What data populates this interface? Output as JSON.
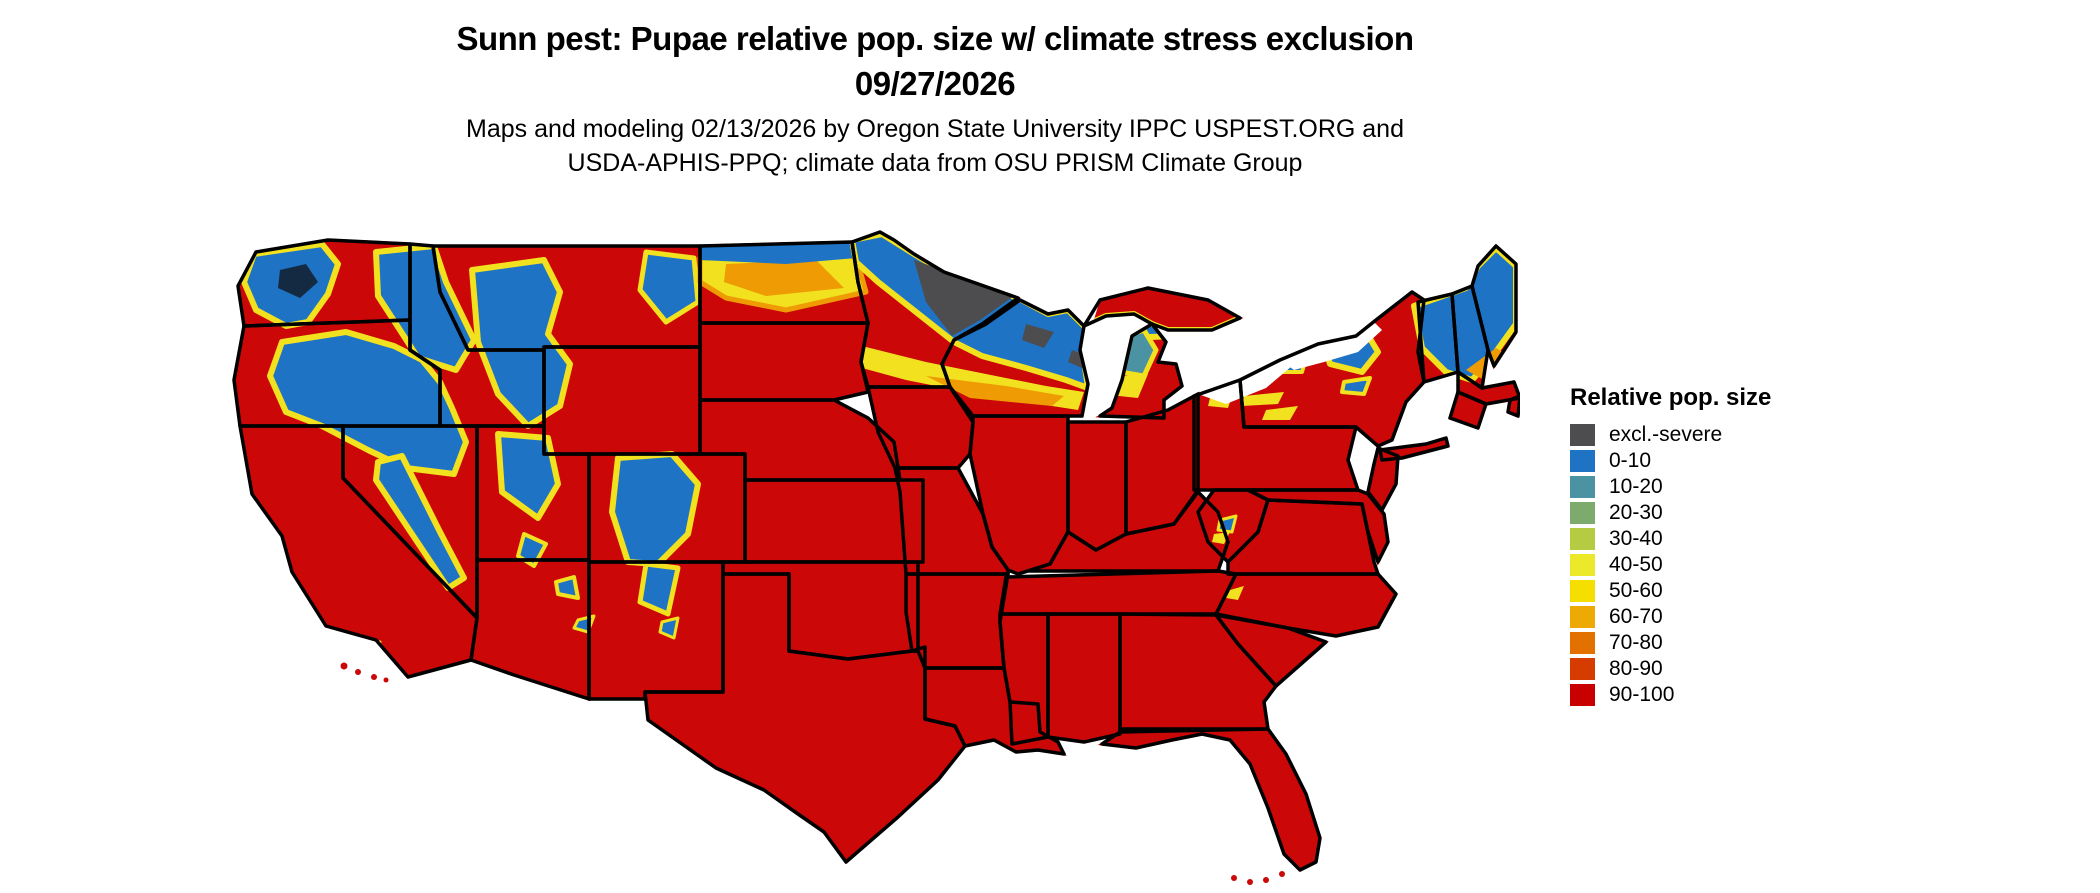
{
  "title": {
    "line1": "Sunn pest: Pupae relative pop. size w/ climate stress exclusion",
    "line2": "09/27/2026"
  },
  "subtitle": {
    "line1": "Maps and modeling 02/13/2026 by Oregon State University IPPC USPEST.ORG and",
    "line2": "USDA-APHIS-PPQ; climate data from OSU PRISM Climate Group"
  },
  "legend": {
    "title": "Relative pop. size",
    "items": [
      {
        "label": "excl.-severe",
        "color": "#4d4d50"
      },
      {
        "label": "0-10",
        "color": "#1e73c4"
      },
      {
        "label": "10-20",
        "color": "#4b93a2"
      },
      {
        "label": "20-30",
        "color": "#7cab6d"
      },
      {
        "label": "30-40",
        "color": "#b5cc42"
      },
      {
        "label": "40-50",
        "color": "#ece82a"
      },
      {
        "label": "50-60",
        "color": "#f5df00"
      },
      {
        "label": "60-70",
        "color": "#eda904"
      },
      {
        "label": "70-80",
        "color": "#e27100"
      },
      {
        "label": "80-90",
        "color": "#d63c00"
      },
      {
        "label": "90-100",
        "color": "#c80000"
      }
    ]
  },
  "map": {
    "region_label": "Contiguous United States",
    "palette": {
      "base": "#cb0707",
      "blue": "#1e73c4",
      "teal": "#4b93a2",
      "green": "#7cab6d",
      "ygreen": "#b5cc42",
      "yellow": "#f2e11e",
      "gold": "#f5df00",
      "orange": "#ee9b04",
      "dark_orange": "#e27100",
      "red_orange": "#d63c00",
      "gray": "#4d4d50",
      "dark": "#132a42",
      "water": "#ffffff",
      "border": "#000000"
    }
  }
}
